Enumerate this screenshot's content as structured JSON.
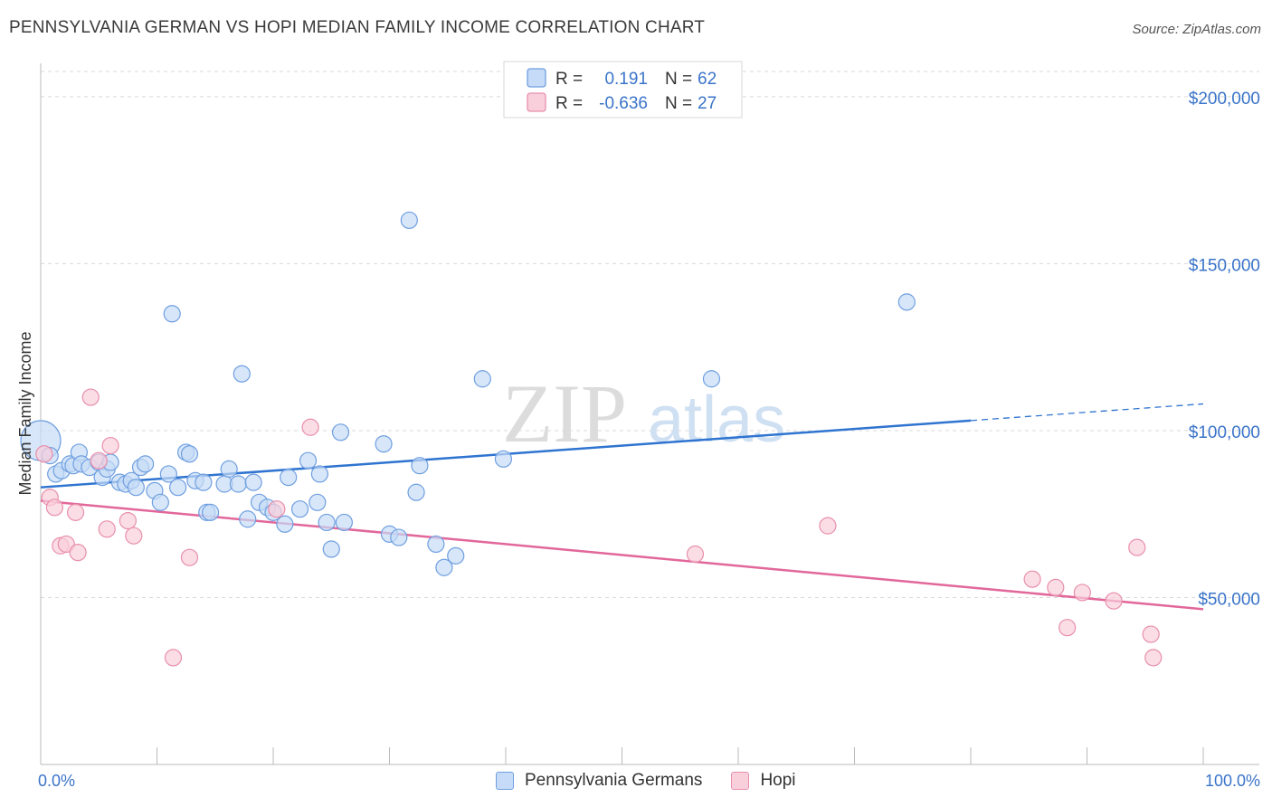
{
  "header": {
    "title": "PENNSYLVANIA GERMAN VS HOPI MEDIAN FAMILY INCOME CORRELATION CHART",
    "source": "Source: ZipAtlas.com"
  },
  "watermark": {
    "zip": "ZIP",
    "atlas": "atlas"
  },
  "legend_top": {
    "rows": [
      {
        "r_label": "R =",
        "r_value": "0.191",
        "n_label": "N =",
        "n_value": "62"
      },
      {
        "r_label": "R =",
        "r_value": "-0.636",
        "n_label": "N =",
        "n_value": "27"
      }
    ]
  },
  "legend_bottom": {
    "items": [
      "Pennsylvania Germans",
      "Hopi"
    ]
  },
  "colors": {
    "blue_fill": "#c6dbf7",
    "blue_stroke": "#6f9fe0",
    "blue_line": "#2f74d0",
    "pink_fill": "#f9cfdc",
    "pink_stroke": "#e88fac",
    "pink_line": "#e2679a",
    "axis_text": "#3a74c9",
    "grid": "#d9d9d9"
  },
  "chart_data": {
    "type": "scatter",
    "title": "PENNSYLVANIA GERMAN VS HOPI MEDIAN FAMILY INCOME CORRELATION CHART",
    "xlabel": "",
    "ylabel": "Median Family Income",
    "xlim": [
      0,
      100
    ],
    "ylim": [
      0,
      210000
    ],
    "x_tick_labels": [
      "0.0%",
      "100.0%"
    ],
    "y_ticks": [
      50000,
      100000,
      150000,
      200000
    ],
    "y_tick_labels": [
      "$50,000",
      "$100,000",
      "$150,000",
      "$200,000"
    ],
    "series": [
      {
        "name": "Pennsylvania Germans",
        "color": "blue",
        "R": 0.191,
        "N": 62,
        "trend": {
          "x0": 0,
          "y0": 83000,
          "x1": 80,
          "y1": 103000,
          "x_dash_end": 100,
          "y_dash_end": 108000
        },
        "points": [
          [
            0.0,
            97000
          ],
          [
            0.8,
            92500
          ],
          [
            1.3,
            87000
          ],
          [
            1.8,
            88000
          ],
          [
            2.5,
            90000
          ],
          [
            2.8,
            89500
          ],
          [
            3.3,
            93500
          ],
          [
            3.5,
            90000
          ],
          [
            4.2,
            89000
          ],
          [
            5.0,
            90500
          ],
          [
            5.3,
            86000
          ],
          [
            5.7,
            88500
          ],
          [
            6.0,
            90500
          ],
          [
            6.8,
            84500
          ],
          [
            7.3,
            84000
          ],
          [
            7.8,
            85000
          ],
          [
            8.2,
            83000
          ],
          [
            8.6,
            89000
          ],
          [
            9.0,
            90000
          ],
          [
            9.8,
            82000
          ],
          [
            10.3,
            78500
          ],
          [
            11.0,
            87000
          ],
          [
            11.3,
            135000
          ],
          [
            11.8,
            83000
          ],
          [
            12.5,
            93500
          ],
          [
            12.8,
            93000
          ],
          [
            13.3,
            85000
          ],
          [
            14.0,
            84500
          ],
          [
            14.3,
            75500
          ],
          [
            14.6,
            75500
          ],
          [
            15.8,
            84000
          ],
          [
            16.2,
            88500
          ],
          [
            17.0,
            84000
          ],
          [
            17.3,
            117000
          ],
          [
            17.8,
            73500
          ],
          [
            18.3,
            84500
          ],
          [
            18.8,
            78500
          ],
          [
            19.5,
            77000
          ],
          [
            20.0,
            75500
          ],
          [
            21.0,
            72000
          ],
          [
            21.3,
            86000
          ],
          [
            22.3,
            76500
          ],
          [
            23.0,
            91000
          ],
          [
            23.8,
            78500
          ],
          [
            24.0,
            87000
          ],
          [
            24.6,
            72500
          ],
          [
            25.0,
            64500
          ],
          [
            25.8,
            99500
          ],
          [
            26.1,
            72500
          ],
          [
            29.5,
            96000
          ],
          [
            30.0,
            69000
          ],
          [
            30.8,
            68000
          ],
          [
            31.7,
            163000
          ],
          [
            32.3,
            81500
          ],
          [
            32.6,
            89500
          ],
          [
            34.0,
            66000
          ],
          [
            34.7,
            59000
          ],
          [
            35.7,
            62500
          ],
          [
            38.0,
            115500
          ],
          [
            39.8,
            91500
          ],
          [
            57.7,
            115500
          ],
          [
            74.5,
            138500
          ]
        ]
      },
      {
        "name": "Hopi",
        "color": "pink",
        "R": -0.636,
        "N": 27,
        "trend": {
          "x0": 0,
          "y0": 79000,
          "x1": 100,
          "y1": 46500
        },
        "points": [
          [
            0.3,
            93000
          ],
          [
            0.8,
            80000
          ],
          [
            1.2,
            77000
          ],
          [
            1.7,
            65500
          ],
          [
            2.2,
            66000
          ],
          [
            3.0,
            75500
          ],
          [
            3.2,
            63500
          ],
          [
            4.3,
            110000
          ],
          [
            5.0,
            91000
          ],
          [
            5.7,
            70500
          ],
          [
            6.0,
            95500
          ],
          [
            7.5,
            73000
          ],
          [
            8.0,
            68500
          ],
          [
            11.4,
            32000
          ],
          [
            12.8,
            62000
          ],
          [
            20.3,
            76500
          ],
          [
            23.2,
            101000
          ],
          [
            56.3,
            63000
          ],
          [
            67.7,
            71500
          ],
          [
            85.3,
            55500
          ],
          [
            87.3,
            53000
          ],
          [
            88.3,
            41000
          ],
          [
            89.6,
            51500
          ],
          [
            92.3,
            49000
          ],
          [
            94.3,
            65000
          ],
          [
            95.5,
            39000
          ],
          [
            95.7,
            32000
          ]
        ]
      }
    ]
  }
}
